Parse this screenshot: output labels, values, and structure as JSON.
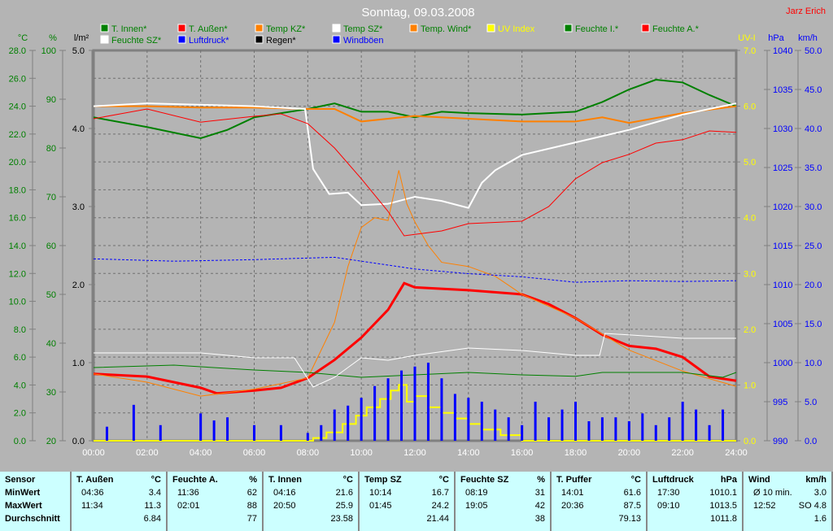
{
  "title": "Sonntag, 09.03.2008",
  "author": "Jarz Erich",
  "legend": [
    {
      "label": "T. Innen*",
      "color": "#008000",
      "text": "#008000"
    },
    {
      "label": "T. Außen*",
      "color": "#ff0000",
      "text": "#008000"
    },
    {
      "label": "Temp KZ*",
      "color": "#ff8000",
      "text": "#008000"
    },
    {
      "label": "Temp SZ*",
      "color": "#ffffff",
      "text": "#008000"
    },
    {
      "label": "Temp. Wind*",
      "color": "#ff8000",
      "text": "#008000"
    },
    {
      "label": "UV Index",
      "color": "#ffff00",
      "text": "#ffff00"
    },
    {
      "label": "Feuchte I.*",
      "color": "#008000",
      "text": "#008000"
    },
    {
      "label": "Feuchte A.*",
      "color": "#ff0000",
      "text": "#008000"
    },
    {
      "label": "Feuchte SZ*",
      "color": "#ffffff",
      "text": "#008000"
    },
    {
      "label": "Luftdruck*",
      "color": "#0000ff",
      "text": "#0000ff"
    },
    {
      "label": "Regen*",
      "color": "#000000",
      "text": "#000000"
    },
    {
      "label": "Windböen",
      "color": "#0000ff",
      "text": "#0000ff"
    }
  ],
  "chart_data": {
    "type": "line",
    "title": "Sonntag, 09.03.2008",
    "x_ticks": [
      "00:00",
      "02:00",
      "04:00",
      "06:00",
      "08:00",
      "10:00",
      "12:00",
      "14:00",
      "16:00",
      "18:00",
      "20:00",
      "22:00",
      "24:00"
    ],
    "axes": {
      "temp": {
        "unit": "°C",
        "range": [
          0,
          28
        ],
        "step": 2,
        "color": "#008000"
      },
      "hum": {
        "unit": "%",
        "range": [
          20,
          100
        ],
        "step": 10,
        "color": "#008000"
      },
      "rain": {
        "unit": "l/m²",
        "range": [
          0,
          5
        ],
        "step": 1,
        "color": "#000000"
      },
      "uv": {
        "unit": "UV-I",
        "range": [
          0,
          7
        ],
        "step": 1,
        "color": "#ffff00"
      },
      "press": {
        "unit": "hPa",
        "range": [
          990,
          1040
        ],
        "step": 5,
        "color": "#0000ff"
      },
      "wind": {
        "unit": "km/h",
        "range": [
          0,
          50
        ],
        "step": 5,
        "color": "#0000ff"
      }
    },
    "grid": true,
    "series": [
      {
        "name": "T. Innen*",
        "axis": "temp",
        "color": "#008000",
        "width": 2,
        "x": [
          0,
          2,
          4,
          5,
          6,
          8,
          9,
          10,
          11,
          12,
          13,
          14,
          16,
          18,
          19,
          20,
          21,
          22,
          23,
          24
        ],
        "y": [
          23.2,
          22.5,
          21.7,
          22.3,
          23.2,
          23.8,
          24.2,
          23.6,
          23.6,
          23.2,
          23.6,
          23.5,
          23.4,
          23.6,
          24.3,
          25.2,
          25.9,
          25.7,
          24.8,
          24.0
        ]
      },
      {
        "name": "Temp KZ*",
        "axis": "temp",
        "color": "#ff8000",
        "width": 2,
        "x": [
          0,
          2,
          4,
          6,
          8,
          9,
          10,
          12,
          14,
          16,
          18,
          19,
          20,
          22,
          24
        ],
        "y": [
          24.0,
          24.0,
          23.9,
          23.9,
          23.8,
          23.8,
          22.9,
          23.3,
          23.1,
          22.9,
          22.9,
          23.2,
          22.8,
          23.5,
          24.0
        ]
      },
      {
        "name": "Temp SZ*",
        "axis": "temp",
        "color": "#ffffff",
        "width": 2,
        "x": [
          0,
          2,
          4,
          6,
          7.9,
          8.2,
          8.8,
          9.5,
          10,
          11,
          12,
          13,
          14,
          14.5,
          15,
          16,
          18,
          20,
          22,
          24
        ],
        "y": [
          24.0,
          24.2,
          24.1,
          24.0,
          23.8,
          19.5,
          17.7,
          17.8,
          16.9,
          17.0,
          17.5,
          17.2,
          16.7,
          18.5,
          19.4,
          20.5,
          21.4,
          22.3,
          23.4,
          24.2
        ]
      },
      {
        "name": "T. Außen*",
        "axis": "temp",
        "color": "#ff0000",
        "width": 3,
        "x": [
          0,
          2,
          4,
          4.6,
          6,
          7,
          8,
          9,
          10,
          11,
          11.6,
          12,
          14,
          16,
          17,
          18,
          19,
          20,
          21,
          22,
          23,
          24
        ],
        "y": [
          4.8,
          4.6,
          3.8,
          3.4,
          3.6,
          3.8,
          4.5,
          5.8,
          7.4,
          9.4,
          11.3,
          11.0,
          10.8,
          10.5,
          9.8,
          8.8,
          7.6,
          6.8,
          6.6,
          6.0,
          4.6,
          4.3
        ]
      },
      {
        "name": "Temp. Wind*",
        "axis": "temp",
        "color": "#ff8000",
        "width": 1,
        "x": [
          0,
          2,
          4,
          6,
          8,
          9,
          9.5,
          10,
          10.5,
          11,
          11.4,
          11.7,
          12,
          12.5,
          13,
          14,
          15,
          16,
          18,
          20,
          22,
          24
        ],
        "y": [
          4.8,
          4.2,
          3.2,
          3.7,
          4.5,
          8.5,
          12.5,
          15.3,
          16.0,
          15.8,
          19.4,
          17.0,
          15.7,
          14.0,
          12.8,
          12.5,
          11.8,
          10.5,
          8.8,
          6.5,
          5.0,
          3.9
        ]
      },
      {
        "name": "Feuchte A.*",
        "axis": "hum",
        "color": "#ff0000",
        "width": 1,
        "x": [
          0,
          1,
          2,
          4,
          6,
          7,
          8,
          9,
          10,
          11,
          11.6,
          13,
          14,
          16,
          17,
          18,
          19,
          20,
          21,
          22,
          23,
          24
        ],
        "y": [
          86,
          87,
          88,
          85.3,
          86.5,
          87,
          85,
          80,
          73.7,
          67,
          62,
          63,
          64.5,
          65,
          68,
          73.7,
          77,
          78.7,
          81,
          81.7,
          83.5,
          83.2
        ]
      },
      {
        "name": "Feuchte I.*",
        "axis": "hum",
        "color": "#008000",
        "width": 1,
        "x": [
          0,
          3,
          6,
          8,
          9,
          10,
          12,
          14,
          16,
          18,
          19,
          22,
          23.5,
          24
        ],
        "y": [
          35,
          35.5,
          34.5,
          34,
          33.5,
          33,
          33.5,
          34,
          33.5,
          33.2,
          34,
          34,
          33,
          34
        ]
      },
      {
        "name": "Feuchte SZ*",
        "axis": "hum",
        "color": "#ffffff",
        "width": 1,
        "x": [
          0,
          2,
          4,
          6,
          7.5,
          8.2,
          9,
          10,
          11,
          12,
          14,
          16,
          18,
          18.9,
          19.1,
          22,
          24
        ],
        "y": [
          38,
          38,
          38,
          37,
          37,
          31,
          33,
          37,
          36.5,
          37.5,
          39,
          38.5,
          37.5,
          37.5,
          42,
          41,
          41
        ]
      },
      {
        "name": "Luftdruck*",
        "axis": "press",
        "color": "#0000ff",
        "width": 1,
        "dash": true,
        "x": [
          0,
          3,
          6,
          9,
          10,
          12,
          14,
          16,
          18,
          20,
          22,
          24
        ],
        "y": [
          1013.3,
          1013,
          1013.2,
          1013.5,
          1013,
          1012,
          1011.4,
          1011,
          1010.3,
          1010.5,
          1010.4,
          1010.5
        ]
      },
      {
        "name": "UV Index",
        "axis": "uv",
        "color": "#ffff00",
        "width": 2,
        "step": true,
        "x": [
          0,
          8.2,
          8.7,
          9.3,
          9.8,
          10.2,
          10.7,
          11.1,
          11.4,
          11.7,
          12,
          12.5,
          13,
          13.5,
          14,
          14.5,
          15.2,
          16,
          24
        ],
        "y": [
          0,
          0.05,
          0.15,
          0.3,
          0.45,
          0.6,
          0.75,
          0.9,
          1.0,
          0.7,
          0.8,
          0.6,
          0.5,
          0.4,
          0.3,
          0.2,
          0.1,
          0,
          0
        ]
      },
      {
        "name": "Windböen",
        "axis": "wind",
        "color": "#0000ff",
        "bars": true,
        "x": [
          0.5,
          1,
          1.5,
          2,
          2.5,
          3,
          3.5,
          4,
          4.5,
          5,
          5.5,
          6,
          6.5,
          7,
          7.5,
          8,
          8.5,
          9,
          9.5,
          10,
          10.5,
          11,
          11.5,
          12,
          12.5,
          13,
          13.5,
          14,
          14.5,
          15,
          15.5,
          16,
          16.5,
          17,
          17.5,
          18,
          18.5,
          19,
          19.5,
          20,
          20.5,
          21,
          21.5,
          22,
          22.5,
          23,
          23.5
        ],
        "y": [
          1.8,
          0,
          4.6,
          0,
          2,
          0,
          0,
          3.5,
          2.6,
          3,
          0,
          2,
          0,
          2,
          0,
          1,
          2,
          4,
          4.5,
          5.5,
          7,
          8,
          9,
          9.5,
          10,
          8,
          6,
          5.5,
          5,
          4,
          3,
          2,
          5,
          3,
          4,
          5,
          2.5,
          3,
          3,
          2.5,
          3.5,
          2,
          3,
          5,
          4,
          2,
          4
        ]
      }
    ],
    "rain_values": []
  },
  "table": {
    "sensor_col": {
      "header": "Sensor",
      "rows": [
        "MinWert",
        "MaxWert",
        "Durchschnitt"
      ]
    },
    "columns": [
      {
        "name": "T. Außen",
        "unit": "°C",
        "min_time": "04:36",
        "min": "3.4",
        "max_time": "11:34",
        "max": "11.3",
        "avg": "6.84"
      },
      {
        "name": "Feuchte A.",
        "unit": "%",
        "min_time": "11:36",
        "min": "62",
        "max_time": "02:01",
        "max": "88",
        "avg": "77"
      },
      {
        "name": "T. Innen",
        "unit": "°C",
        "min_time": "04:16",
        "min": "21.6",
        "max_time": "20:50",
        "max": "25.9",
        "avg": "23.58"
      },
      {
        "name": "Temp SZ",
        "unit": "°C",
        "min_time": "10:14",
        "min": "16.7",
        "max_time": "01:45",
        "max": "24.2",
        "avg": "21.44"
      },
      {
        "name": "Feuchte SZ",
        "unit": "%",
        "min_time": "08:19",
        "min": "31",
        "max_time": "19:05",
        "max": "42",
        "avg": "38"
      },
      {
        "name": "T. Puffer",
        "unit": "°C",
        "min_time": "14:01",
        "min": "61.6",
        "max_time": "20:36",
        "max": "87.5",
        "avg": "79.13"
      },
      {
        "name": "Luftdruck",
        "unit": "hPa",
        "min_time": "17:30",
        "min": "1010.1",
        "max_time": "09:10",
        "max": "1013.5",
        "avg": "1011.8"
      },
      {
        "name": "Wind",
        "unit": "km/h",
        "min_time": "Ø 10 min.",
        "min": "3.0",
        "max_time": "12:52",
        "max": "SO 4.8",
        "avg": "1.6"
      }
    ]
  }
}
